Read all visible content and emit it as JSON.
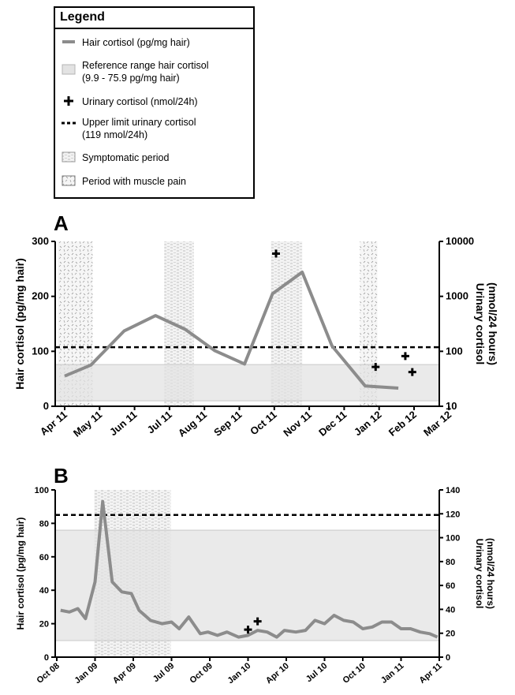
{
  "legend": {
    "title": "Legend",
    "items": [
      {
        "key": "hair",
        "label": "Hair cortisol (pg/mg hair)",
        "label2": ""
      },
      {
        "key": "ref",
        "label": "Reference range hair cortisol",
        "label2": "(9.9 - 75.9 pg/mg hair)"
      },
      {
        "key": "urinary",
        "label": "Urinary cortisol (nmol/24h)",
        "label2": ""
      },
      {
        "key": "upper",
        "label": "Upper limit urinary cortisol",
        "label2": "(119 nmol/24h)"
      },
      {
        "key": "symptomatic",
        "label": "Symptomatic period",
        "label2": ""
      },
      {
        "key": "musclepain",
        "label": "Period with muscle pain",
        "label2": ""
      }
    ]
  },
  "colors": {
    "hair_line": "#8c8c8c",
    "reference": "#e3e3e3",
    "urinary": "#000000",
    "upper_limit": "#000000"
  },
  "chart_data": [
    {
      "panel": "A",
      "type": "line",
      "x_categories": [
        "Apr 11",
        "May 11",
        "Jun 11",
        "Jul 11",
        "Aug 11",
        "Sep 11",
        "Oct 11",
        "Nov 11",
        "Dec 11",
        "Jan 12",
        "Feb 12",
        "Mar 12"
      ],
      "ylabel": "Hair cortisol (pg/mg hair)",
      "ylabel_right": [
        "Urinary cortisol",
        "(nmol/24 hours)"
      ],
      "ylim": [
        0,
        300
      ],
      "yticks": [
        "0",
        "100",
        "200",
        "300"
      ],
      "y2_scale": "log",
      "y2lim": [
        10,
        10000
      ],
      "y2ticks": [
        "10",
        "100",
        "1000",
        "10000"
      ],
      "reference_range": [
        9.9,
        75.9
      ],
      "upper_limit_urinary": 119,
      "shaded_periods": [
        {
          "kind": "musclepain",
          "start": -0.2,
          "end": 0.8
        },
        {
          "kind": "symptomatic",
          "start": 2.85,
          "end": 3.7
        },
        {
          "kind": "symptomatic",
          "start": 5.9,
          "end": 6.8
        },
        {
          "kind": "musclepain",
          "start": 8.45,
          "end": 8.95
        }
      ],
      "series": [
        {
          "kind": "hair",
          "x": [
            0,
            0.75,
            1.7,
            2.6,
            3.45,
            4.3,
            5.15,
            5.95,
            6.8,
            7.65,
            8.6,
            9.55
          ],
          "y": [
            55,
            75,
            137,
            165,
            140,
            101,
            77,
            205,
            244,
            110,
            37,
            33
          ]
        },
        {
          "kind": "urinary",
          "x": [
            6.05,
            8.9,
            9.75,
            9.95
          ],
          "y": [
            6000,
            52,
            82,
            42
          ]
        }
      ]
    },
    {
      "panel": "B",
      "type": "line",
      "x_categories": [
        "Oct 08",
        "Jan 09",
        "Apr 09",
        "Jul 09",
        "Oct 09",
        "Jan 10",
        "Apr 10",
        "Jul 10",
        "Oct 10",
        "Jan 11",
        "Apr 11"
      ],
      "ylabel": "Hair cortisol (pg/mg hair)",
      "ylabel_right": [
        "Urinary cortisol",
        "(nmol/24 hours)"
      ],
      "ylim": [
        0,
        100
      ],
      "yticks": [
        "0",
        "20",
        "40",
        "60",
        "80",
        "100"
      ],
      "y2lim": [
        0,
        140
      ],
      "y2ticks": [
        "0",
        "20",
        "40",
        "60",
        "80",
        "100",
        "120",
        "140"
      ],
      "reference_range": [
        9.9,
        75.9
      ],
      "upper_limit_urinary": 119,
      "shaded_periods": [
        {
          "kind": "symptomatic",
          "start": 0.98,
          "end": 2.98
        }
      ],
      "series": [
        {
          "kind": "hair",
          "x": [
            0.1,
            0.33,
            0.55,
            0.75,
            1.0,
            1.2,
            1.45,
            1.7,
            1.95,
            2.15,
            2.45,
            2.75,
            3.0,
            3.2,
            3.45,
            3.75,
            3.95,
            4.2,
            4.45,
            4.75,
            5.0,
            5.25,
            5.5,
            5.75,
            5.95,
            6.25,
            6.5,
            6.75,
            7.0,
            7.25,
            7.5,
            7.75,
            8.0,
            8.25,
            8.5,
            8.75,
            9.0,
            9.25,
            9.5,
            9.75,
            9.95
          ],
          "y": [
            28,
            27,
            29,
            23,
            45,
            93,
            45,
            39,
            38,
            28,
            22,
            20,
            21,
            17,
            24,
            14,
            15,
            13,
            15,
            12,
            13,
            16,
            15,
            12,
            16,
            15,
            16,
            22,
            20,
            25,
            22,
            21,
            17,
            18,
            21,
            21,
            17,
            17,
            15,
            14,
            12
          ]
        },
        {
          "kind": "urinary",
          "x": [
            5.0,
            5.25
          ],
          "y": [
            23,
            30
          ]
        }
      ]
    }
  ],
  "panels": [
    {
      "letter": "A"
    },
    {
      "letter": "B"
    }
  ]
}
